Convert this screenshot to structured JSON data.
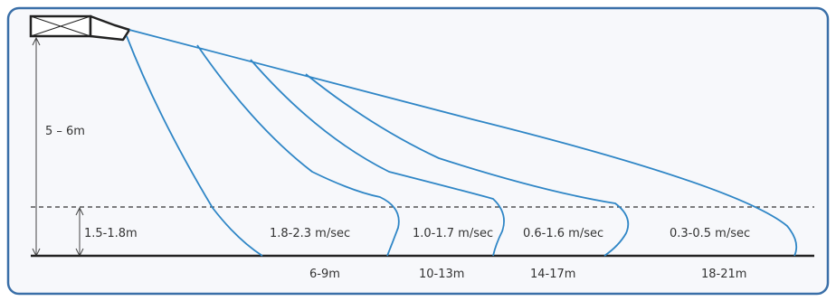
{
  "colors": {
    "frame": "#3a6fa8",
    "flow": "#2f86c6",
    "unit": "#222222",
    "dimension": "#444444",
    "text": "#333333"
  },
  "labels": {
    "height_total": "5 – 6m",
    "height_occupied": "1.5-1.8m"
  },
  "zones": [
    {
      "velocity": "1.8-2.3 m/sec",
      "distance": "6-9m"
    },
    {
      "velocity": "1.0-1.7 m/sec",
      "distance": "10-13m"
    },
    {
      "velocity": "0.6-1.6 m/sec",
      "distance": "14-17m"
    },
    {
      "velocity": "0.3-0.5 m/sec",
      "distance": "18-21m"
    }
  ]
}
